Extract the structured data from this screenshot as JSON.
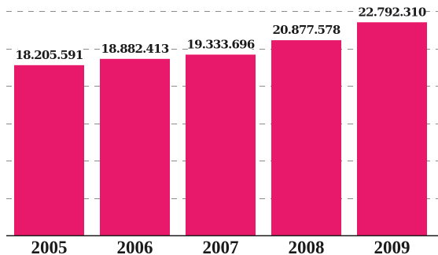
{
  "chart_data": {
    "type": "bar",
    "categories": [
      "2005",
      "2006",
      "2007",
      "2008",
      "2009"
    ],
    "values": [
      18205591,
      18882413,
      19333696,
      20877578,
      22792310
    ],
    "value_labels": [
      "18.205.591",
      "18.882.413",
      "19.333.696",
      "20.877.578",
      "22.792.310"
    ],
    "title": "",
    "xlabel": "",
    "ylabel": "",
    "ylim": [
      0,
      24000000
    ],
    "grid": true,
    "bar_color": "#e8196a"
  }
}
